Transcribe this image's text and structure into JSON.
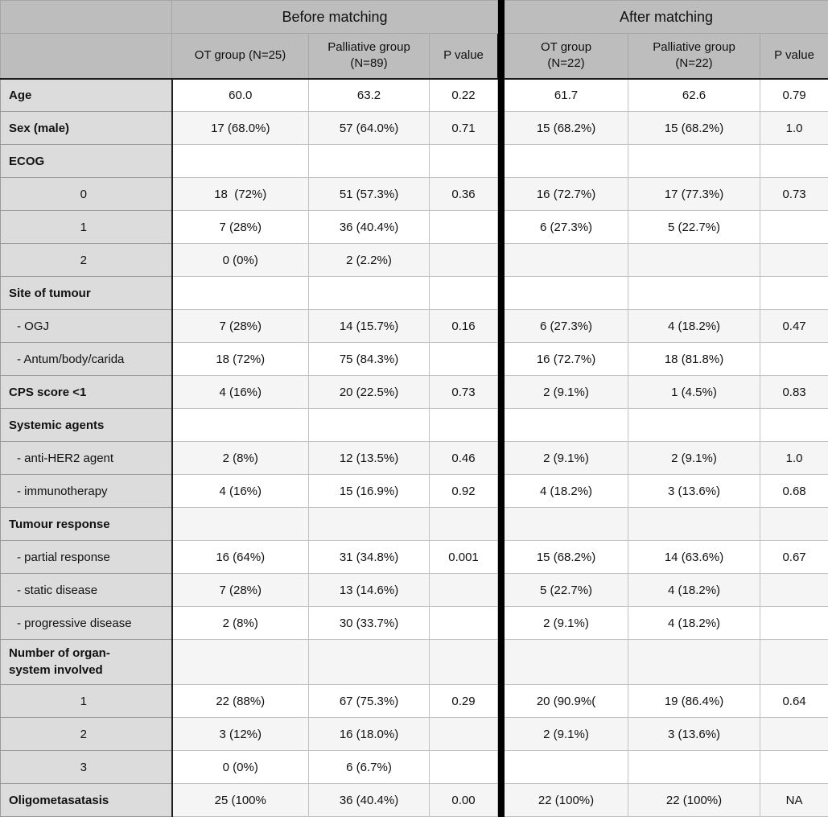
{
  "colors": {
    "header_bg": "#bdbdbd",
    "label_column_bg": "#dcdcdc",
    "row_alt_bg": "#f5f5f5",
    "row_bg": "#ffffff",
    "divider": "#000000",
    "grid_light": "#c2c2c2",
    "grid_dark": "#9b9b9b"
  },
  "header": {
    "corner": "",
    "groups": [
      {
        "title": "Before matching",
        "cols": [
          {
            "l1": "OT group (N=25)",
            "l2": ""
          },
          {
            "l1": "Palliative group",
            "l2": "(N=89)"
          },
          {
            "l1": "P value",
            "l2": ""
          }
        ]
      },
      {
        "title": "After matching",
        "cols": [
          {
            "l1": "OT group",
            "l2": "(N=22)"
          },
          {
            "l1": "Palliative group",
            "l2": "(N=22)"
          },
          {
            "l1": "P value",
            "l2": ""
          }
        ]
      }
    ]
  },
  "table": {
    "rows": [
      {
        "label": "Age",
        "style": "section",
        "cells": [
          "60.0",
          "63.2",
          "0.22",
          "61.7",
          "62.6",
          "0.79"
        ]
      },
      {
        "label": "Sex (male)",
        "style": "section",
        "cells": [
          "17 (68.0%)",
          "57 (64.0%)",
          "0.71",
          "15 (68.2%)",
          "15 (68.2%)",
          "1.0"
        ]
      },
      {
        "label": "ECOG",
        "style": "section",
        "cells": [
          "",
          "",
          "",
          "",
          "",
          ""
        ]
      },
      {
        "label": "0",
        "style": "num",
        "cells": [
          "18  (72%)",
          "51 (57.3%)",
          "0.36",
          "16 (72.7%)",
          "17 (77.3%)",
          "0.73"
        ]
      },
      {
        "label": "1",
        "style": "num",
        "cells": [
          "7 (28%)",
          "36 (40.4%)",
          "",
          "6 (27.3%)",
          "5 (22.7%)",
          ""
        ]
      },
      {
        "label": "2",
        "style": "num",
        "cells": [
          "0 (0%)",
          "2 (2.2%)",
          "",
          "",
          "",
          ""
        ]
      },
      {
        "label": "Site of tumour",
        "style": "section",
        "cells": [
          "",
          "",
          "",
          "",
          "",
          ""
        ]
      },
      {
        "label": "- OGJ",
        "style": "sub",
        "cells": [
          "7 (28%)",
          "14 (15.7%)",
          "0.16",
          "6 (27.3%)",
          "4 (18.2%)",
          "0.47"
        ]
      },
      {
        "label": "- Antum/body/carida",
        "style": "sub",
        "cells": [
          "18 (72%)",
          "75 (84.3%)",
          "",
          "16 (72.7%)",
          "18 (81.8%)",
          ""
        ]
      },
      {
        "label": "CPS score <1",
        "style": "section",
        "cells": [
          "4 (16%)",
          "20 (22.5%)",
          "0.73",
          "2 (9.1%)",
          "1 (4.5%)",
          "0.83"
        ]
      },
      {
        "label": "Systemic agents",
        "style": "section",
        "cells": [
          "",
          "",
          "",
          "",
          "",
          ""
        ]
      },
      {
        "label": "- anti-HER2 agent",
        "style": "sub",
        "cells": [
          "2 (8%)",
          "12 (13.5%)",
          "0.46",
          "2 (9.1%)",
          "2 (9.1%)",
          "1.0"
        ]
      },
      {
        "label": "- immunotherapy",
        "style": "sub",
        "cells": [
          "4 (16%)",
          "15 (16.9%)",
          "0.92",
          "4 (18.2%)",
          "3 (13.6%)",
          "0.68"
        ]
      },
      {
        "label": "Tumour response",
        "style": "section",
        "cells": [
          "",
          "",
          "",
          "",
          "",
          ""
        ]
      },
      {
        "label": "- partial response",
        "style": "sub",
        "cells": [
          "16 (64%)",
          "31 (34.8%)",
          "0.001",
          "15 (68.2%)",
          "14 (63.6%)",
          "0.67"
        ]
      },
      {
        "label": "- static disease",
        "style": "sub",
        "cells": [
          "7 (28%)",
          "13 (14.6%)",
          "",
          "5 (22.7%)",
          "4 (18.2%)",
          ""
        ]
      },
      {
        "label": "- progressive disease",
        "style": "sub",
        "cells": [
          "2 (8%)",
          "30 (33.7%)",
          "",
          "2 (9.1%)",
          "4 (18.2%)",
          ""
        ]
      },
      {
        "label": "Number of organ-",
        "label2": "system involved",
        "style": "section",
        "cells": [
          "",
          "",
          "",
          "",
          "",
          ""
        ]
      },
      {
        "label": "1",
        "style": "num",
        "cells": [
          "22 (88%)",
          "67 (75.3%)",
          "0.29",
          "20 (90.9%(",
          "19 (86.4%)",
          "0.64"
        ]
      },
      {
        "label": "2",
        "style": "num",
        "cells": [
          "3 (12%)",
          "16 (18.0%)",
          "",
          "2 (9.1%)",
          "3 (13.6%)",
          ""
        ]
      },
      {
        "label": "3",
        "style": "num",
        "cells": [
          "0 (0%)",
          "6 (6.7%)",
          "",
          "",
          "",
          ""
        ]
      },
      {
        "label": "Oligometasatasis",
        "style": "section",
        "cells": [
          "25 (100%",
          "36 (40.4%)",
          "0.00",
          "22 (100%)",
          "22 (100%)",
          "NA"
        ]
      }
    ]
  }
}
